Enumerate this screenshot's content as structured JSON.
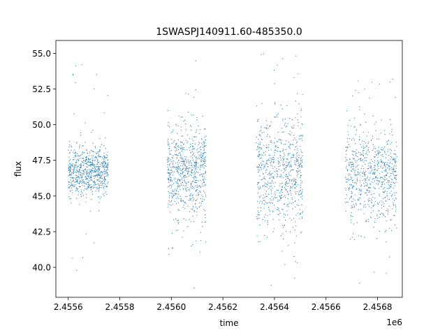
{
  "chart_data": {
    "type": "scatter",
    "title": "1SWASPJ140911.60-485350.0",
    "xlabel": "time",
    "ylabel": "flux",
    "x_offset_label": "1e6",
    "xlim": [
      2455552,
      2456896
    ],
    "ylim": [
      37.9,
      55.9
    ],
    "xticks": [
      2455600,
      2455800,
      2456000,
      2456200,
      2456400,
      2456600,
      2456800
    ],
    "xtick_labels": [
      "2.4556",
      "2.4558",
      "2.4560",
      "2.4562",
      "2.4564",
      "2.4566",
      "2.4568"
    ],
    "yticks": [
      40.0,
      42.5,
      45.0,
      47.5,
      50.0,
      52.5,
      55.0
    ],
    "ytick_labels": [
      "40.0",
      "42.5",
      "45.0",
      "47.5",
      "50.0",
      "52.5",
      "55.0"
    ],
    "grid": false,
    "legend": "none",
    "marker_color": "#1f77b4",
    "series": [
      {
        "observing_seasons": [
          {
            "x_range": [
              2455600,
              2455755
            ],
            "flux_center": 46.7,
            "flux_core_range": [
              45.5,
              48.3
            ],
            "flux_extreme_range": [
              38.5,
              54.5
            ]
          },
          {
            "x_range": [
              2455985,
              2456135
            ],
            "flux_center": 46.7,
            "flux_core_range": [
              44.0,
              49.0
            ],
            "flux_extreme_range": [
              38.5,
              55.0
            ]
          },
          {
            "x_range": [
              2456330,
              2456510
            ],
            "flux_center": 46.7,
            "flux_core_range": [
              43.5,
              50.0
            ],
            "flux_extreme_range": [
              38.5,
              55.1
            ]
          },
          {
            "x_range": [
              2456675,
              2456875
            ],
            "flux_center": 46.5,
            "flux_core_range": [
              44.0,
              49.5
            ],
            "flux_extreme_range": [
              38.5,
              55.0
            ]
          }
        ]
      }
    ]
  }
}
